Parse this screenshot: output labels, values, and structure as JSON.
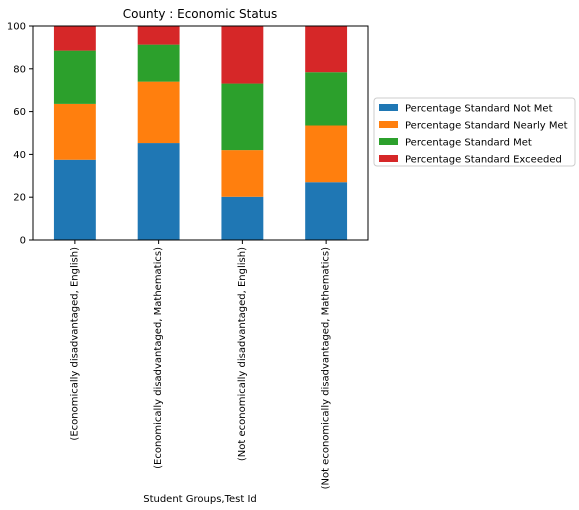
{
  "chart_data": {
    "type": "bar",
    "stacked": true,
    "title": "County : Economic Status",
    "xlabel": "Student Groups,Test Id",
    "ylabel": "",
    "ylim": [
      0,
      100
    ],
    "yticks": [
      0,
      20,
      40,
      60,
      80,
      100
    ],
    "grid": false,
    "legend_position": "right",
    "categories": [
      "(Economically disadvantaged, English)",
      "(Economically disadvantaged, Mathematics)",
      "(Not economically disadvantaged, English)",
      "(Not economically disadvantaged, Mathematics)"
    ],
    "series": [
      {
        "name": "Percentage Standard Not Met",
        "color": "#1f77b4",
        "values": [
          37.5,
          45.3,
          20.2,
          27.0
        ]
      },
      {
        "name": "Percentage Standard Nearly Met",
        "color": "#ff7f0e",
        "values": [
          26.1,
          28.7,
          21.8,
          26.5
        ]
      },
      {
        "name": "Percentage Standard Met",
        "color": "#2ca02c",
        "values": [
          24.9,
          17.3,
          31.1,
          24.9
        ]
      },
      {
        "name": "Percentage Standard Exceeded",
        "color": "#d62728",
        "values": [
          11.5,
          8.7,
          26.9,
          21.6
        ]
      }
    ]
  }
}
